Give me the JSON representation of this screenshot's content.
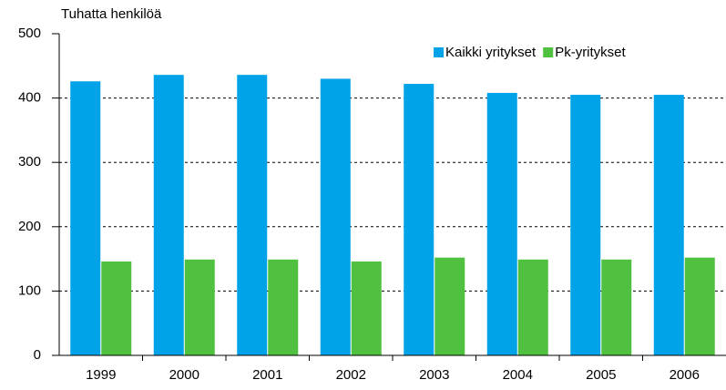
{
  "chart_data": {
    "type": "bar",
    "y_axis_label": "Tuhatta henkilöä",
    "categories": [
      "1999",
      "2000",
      "2001",
      "2002",
      "2003",
      "2004",
      "2005",
      "2006"
    ],
    "series": [
      {
        "name": "Kaikki yritykset",
        "color": "#00a2e8",
        "values": [
          426,
          436,
          436,
          430,
          422,
          408,
          405,
          405
        ]
      },
      {
        "name": "Pk-yritykset",
        "color": "#50c040",
        "values": [
          146,
          149,
          149,
          146,
          152,
          149,
          149,
          152
        ]
      }
    ],
    "ylim": [
      0,
      500
    ],
    "yticks": [
      0,
      100,
      200,
      300,
      400,
      500
    ],
    "grid": true,
    "legend": "top-right"
  }
}
